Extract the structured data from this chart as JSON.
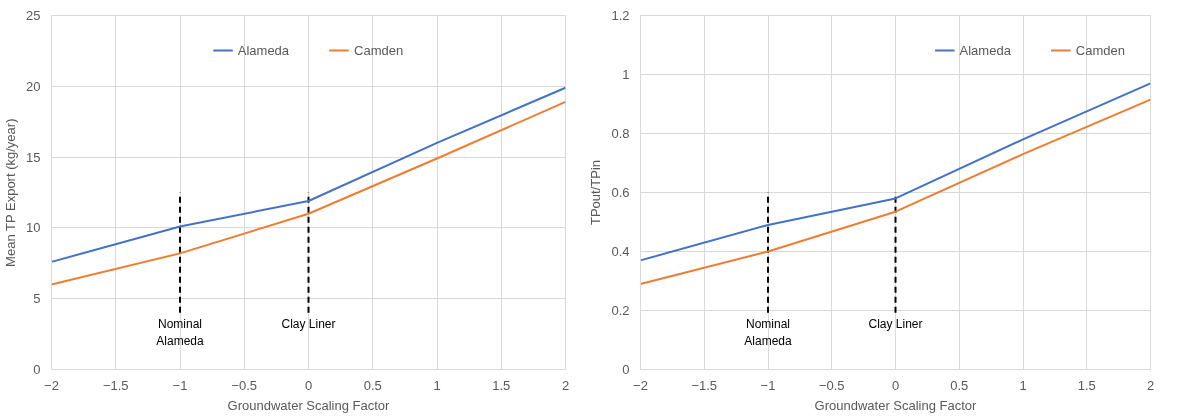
{
  "chart_data": [
    {
      "type": "line",
      "xlabel": "Groundwater Scaling Factor",
      "ylabel": "Mean TP Export (kg/year)",
      "x": [
        -2,
        -1,
        0,
        1,
        2
      ],
      "series": [
        {
          "name": "Alameda",
          "color": "#4472c4",
          "values": [
            7.6,
            10.1,
            11.9,
            16.0,
            19.9
          ]
        },
        {
          "name": "Camden",
          "color": "#ed7d31",
          "values": [
            6.0,
            8.2,
            11.0,
            14.9,
            18.9
          ]
        }
      ],
      "xlim": [
        -2,
        2
      ],
      "xticks": [
        -2,
        -1.5,
        -1,
        -0.5,
        0,
        0.5,
        1,
        1.5,
        2
      ],
      "ylim": [
        0,
        25
      ],
      "yticks": [
        0,
        5,
        10,
        15,
        20,
        25
      ],
      "ref_lines": [
        {
          "axis": "x",
          "value": -1,
          "label": "Nominal\nAlameda",
          "color": "#000000",
          "line_style": "dashed"
        },
        {
          "axis": "x",
          "value": 0,
          "label": "Clay Liner",
          "color": "#000000",
          "line_style": "dashed"
        }
      ],
      "grid": true,
      "legend": "top",
      "marker": "none",
      "line_style": "solid"
    },
    {
      "type": "line",
      "xlabel": "Groundwater Scaling Factor",
      "ylabel": "TPout/TPin",
      "x": [
        -2,
        -1,
        0,
        1,
        2
      ],
      "series": [
        {
          "name": "Alameda",
          "color": "#4472c4",
          "values": [
            0.37,
            0.49,
            0.58,
            0.78,
            0.97
          ]
        },
        {
          "name": "Camden",
          "color": "#ed7d31",
          "values": [
            0.29,
            0.4,
            0.535,
            0.73,
            0.915
          ]
        }
      ],
      "xlim": [
        -2,
        2
      ],
      "xticks": [
        -2,
        -1.5,
        -1,
        -0.5,
        0,
        0.5,
        1,
        1.5,
        2
      ],
      "ylim": [
        0,
        1.2
      ],
      "yticks": [
        0,
        0.2,
        0.4,
        0.6,
        0.8,
        1,
        1.2
      ],
      "ref_lines": [
        {
          "axis": "x",
          "value": -1,
          "label": "Nominal\nAlameda",
          "color": "#000000",
          "line_style": "dashed"
        },
        {
          "axis": "x",
          "value": 0,
          "label": "Clay Liner",
          "color": "#000000",
          "line_style": "dashed"
        }
      ],
      "grid": true,
      "legend": "top right",
      "marker": "none",
      "line_style": "solid"
    }
  ]
}
